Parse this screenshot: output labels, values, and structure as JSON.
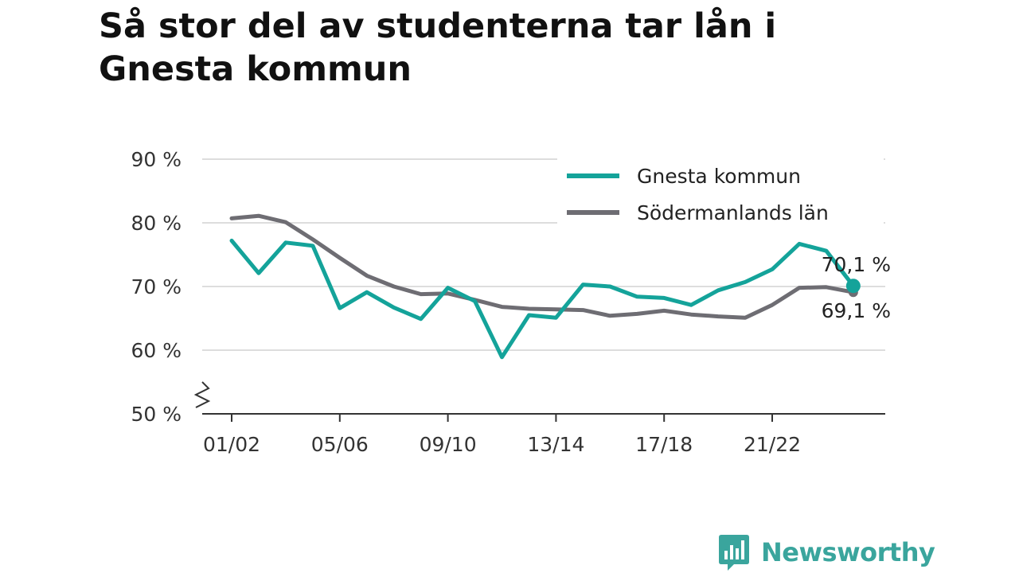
{
  "title": "Så stor del av studenterna tar lån i Gnesta kommun",
  "colors": {
    "gnesta": "#14a39a",
    "sodermanland": "#6e6d73",
    "brand": "#3aa59d",
    "grid": "#dddddd"
  },
  "brand": {
    "name": "Newsworthy",
    "icon": "chat-bar-chart-icon"
  },
  "chart_data": {
    "type": "line",
    "title": "Så stor del av studenterna tar lån i Gnesta kommun",
    "xlabel": "",
    "ylabel": "",
    "x": [
      "01/02",
      "02/03",
      "03/04",
      "04/05",
      "05/06",
      "06/07",
      "07/08",
      "08/09",
      "09/10",
      "10/11",
      "11/12",
      "12/13",
      "13/14",
      "14/15",
      "15/16",
      "16/17",
      "17/18",
      "18/19",
      "19/20",
      "20/21",
      "21/22",
      "22/23",
      "23/24",
      "24/25"
    ],
    "x_tick_labels": [
      "01/02",
      "05/06",
      "09/10",
      "13/14",
      "17/18",
      "21/22"
    ],
    "y_tick_labels": [
      "50 %",
      "60 %",
      "70 %",
      "80 %",
      "90 %"
    ],
    "ylim": [
      50,
      90
    ],
    "y_axis_break": true,
    "grid": true,
    "legend_position": "top-right",
    "series": [
      {
        "name": "Gnesta kommun",
        "color": "#14a39a",
        "values": [
          77.2,
          72.1,
          76.9,
          76.4,
          66.6,
          69.1,
          66.7,
          64.9,
          69.8,
          67.7,
          58.9,
          65.5,
          65.1,
          70.3,
          70.0,
          68.4,
          68.2,
          67.1,
          69.4,
          70.7,
          72.7,
          76.7,
          75.6,
          70.1
        ],
        "end_label": "70,1 %"
      },
      {
        "name": "Södermanlands län",
        "color": "#6e6d73",
        "values": [
          80.7,
          81.1,
          80.1,
          77.4,
          74.5,
          71.7,
          70.0,
          68.8,
          68.9,
          67.9,
          66.8,
          66.5,
          66.4,
          66.3,
          65.4,
          65.7,
          66.2,
          65.6,
          65.3,
          65.1,
          67.1,
          69.8,
          69.9,
          69.1
        ],
        "end_label": "69,1 %"
      }
    ]
  }
}
